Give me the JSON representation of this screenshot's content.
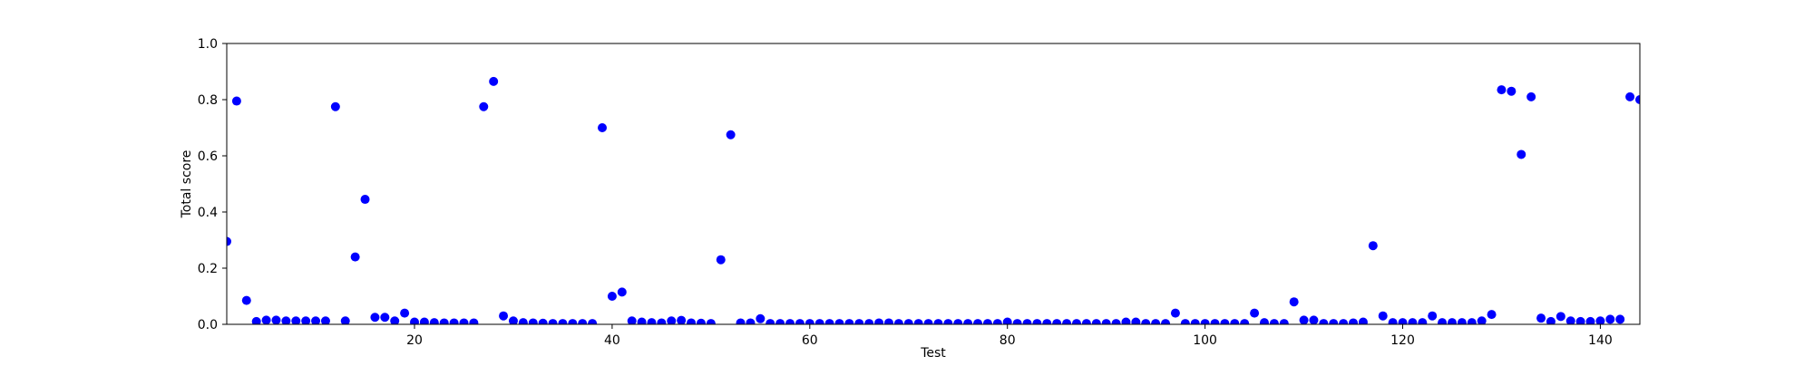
{
  "chart_data": {
    "type": "scatter",
    "xlabel": "Test",
    "ylabel": "Total score",
    "xlim": [
      1,
      144
    ],
    "ylim": [
      0,
      1.0
    ],
    "xticks": [
      20,
      40,
      60,
      80,
      100,
      120,
      140
    ],
    "yticks": [
      0.0,
      0.2,
      0.4,
      0.6,
      0.8,
      1.0
    ],
    "xtick_labels": [
      "20",
      "40",
      "60",
      "80",
      "100",
      "120",
      "140"
    ],
    "ytick_labels": [
      "0.0",
      "0.2",
      "0.4",
      "0.6",
      "0.8",
      "1.0"
    ],
    "grid": false,
    "marker_color": "#0000ff",
    "x": [
      1,
      2,
      3,
      4,
      5,
      6,
      7,
      8,
      9,
      10,
      11,
      12,
      13,
      14,
      15,
      16,
      17,
      18,
      19,
      20,
      21,
      22,
      23,
      24,
      25,
      26,
      27,
      28,
      29,
      30,
      31,
      32,
      33,
      34,
      35,
      36,
      37,
      38,
      39,
      40,
      41,
      42,
      43,
      44,
      45,
      46,
      47,
      48,
      49,
      50,
      51,
      52,
      53,
      54,
      55,
      56,
      57,
      58,
      59,
      60,
      61,
      62,
      63,
      64,
      65,
      66,
      67,
      68,
      69,
      70,
      71,
      72,
      73,
      74,
      75,
      76,
      77,
      78,
      79,
      80,
      81,
      82,
      83,
      84,
      85,
      86,
      87,
      88,
      89,
      90,
      91,
      92,
      93,
      94,
      95,
      96,
      97,
      98,
      99,
      100,
      101,
      102,
      103,
      104,
      105,
      106,
      107,
      108,
      109,
      110,
      111,
      112,
      113,
      114,
      115,
      116,
      117,
      118,
      119,
      120,
      121,
      122,
      123,
      124,
      125,
      126,
      127,
      128,
      129,
      130,
      131,
      132,
      133,
      134,
      135,
      136,
      137,
      138,
      139,
      140,
      141,
      142,
      143,
      144
    ],
    "y": [
      0.295,
      0.795,
      0.085,
      0.01,
      0.015,
      0.015,
      0.012,
      0.012,
      0.012,
      0.012,
      0.012,
      0.775,
      0.012,
      0.24,
      0.445,
      0.025,
      0.025,
      0.012,
      0.04,
      0.008,
      0.008,
      0.006,
      0.005,
      0.005,
      0.005,
      0.005,
      0.775,
      0.865,
      0.03,
      0.012,
      0.006,
      0.005,
      0.004,
      0.003,
      0.003,
      0.003,
      0.003,
      0.003,
      0.7,
      0.1,
      0.115,
      0.012,
      0.008,
      0.006,
      0.005,
      0.012,
      0.014,
      0.005,
      0.004,
      0.003,
      0.23,
      0.675,
      0.005,
      0.005,
      0.02,
      0.003,
      0.003,
      0.003,
      0.003,
      0.003,
      0.003,
      0.003,
      0.003,
      0.003,
      0.003,
      0.003,
      0.005,
      0.005,
      0.003,
      0.003,
      0.003,
      0.003,
      0.003,
      0.003,
      0.003,
      0.003,
      0.003,
      0.003,
      0.003,
      0.008,
      0.003,
      0.003,
      0.003,
      0.003,
      0.003,
      0.003,
      0.003,
      0.003,
      0.003,
      0.003,
      0.003,
      0.008,
      0.008,
      0.003,
      0.003,
      0.003,
      0.04,
      0.003,
      0.003,
      0.003,
      0.003,
      0.003,
      0.003,
      0.003,
      0.04,
      0.006,
      0.003,
      0.003,
      0.08,
      0.015,
      0.015,
      0.003,
      0.003,
      0.003,
      0.005,
      0.008,
      0.28,
      0.03,
      0.006,
      0.006,
      0.006,
      0.006,
      0.03,
      0.006,
      0.006,
      0.006,
      0.006,
      0.012,
      0.035,
      0.835,
      0.83,
      0.605,
      0.81,
      0.022,
      0.01,
      0.028,
      0.012,
      0.01,
      0.01,
      0.012,
      0.018,
      0.018,
      0.81,
      0.8
    ]
  }
}
